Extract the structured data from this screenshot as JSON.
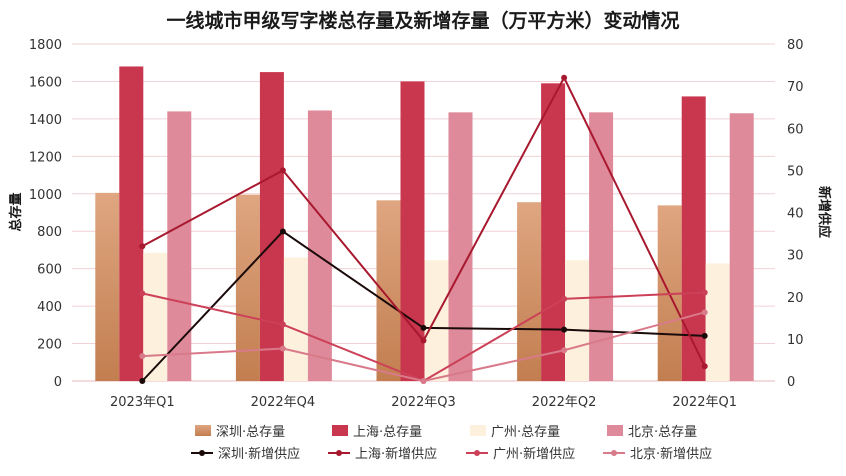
{
  "chart_data": {
    "type": "bar",
    "title": "一线城市甲级写字楼总存量及新增存量（万平方米）变动情况",
    "ylabel": "总存量",
    "y2label": "新增供应",
    "ylim": [
      0,
      1800
    ],
    "y2lim": [
      0,
      80
    ],
    "yticks": [
      "0",
      "200",
      "400",
      "600",
      "800",
      "1000",
      "1200",
      "1400",
      "1600",
      "1800"
    ],
    "y2ticks": [
      "0",
      "10",
      "20",
      "30",
      "40",
      "50",
      "60",
      "70",
      "80"
    ],
    "categories": [
      "2023年Q1",
      "2022年Q4",
      "2022年Q3",
      "2022年Q2",
      "2022年Q1"
    ],
    "bar_series": [
      {
        "name": "深圳·总存量",
        "values": [
          1005,
          995,
          965,
          955,
          938
        ],
        "color": "#d4905f"
      },
      {
        "name": "上海·总存量",
        "values": [
          1680,
          1650,
          1600,
          1590,
          1520
        ],
        "color": "#c9374e"
      },
      {
        "name": "广州·总存量",
        "values": [
          685,
          660,
          645,
          645,
          628
        ],
        "color": "#fdf0dc"
      },
      {
        "name": "北京·总存量",
        "values": [
          1440,
          1445,
          1435,
          1435,
          1430
        ],
        "color": "#de8a9a"
      }
    ],
    "line_series": [
      {
        "name": "深圳·新增供应",
        "values": [
          0,
          35.5,
          12.6,
          12.2,
          10.7
        ],
        "color": "#1a0a0a"
      },
      {
        "name": "上海·新增供应",
        "values": [
          32,
          50,
          9.6,
          72,
          3.5
        ],
        "color": "#a8182e"
      },
      {
        "name": "广州·新增供应",
        "values": [
          20.8,
          13.4,
          0,
          19.5,
          21
        ],
        "color": "#cc4058"
      },
      {
        "name": "北京·新增供应",
        "values": [
          5.9,
          7.7,
          0,
          7.3,
          16.3
        ],
        "color": "#d97a8a"
      }
    ],
    "legend_position": "bottom",
    "grid": true
  }
}
